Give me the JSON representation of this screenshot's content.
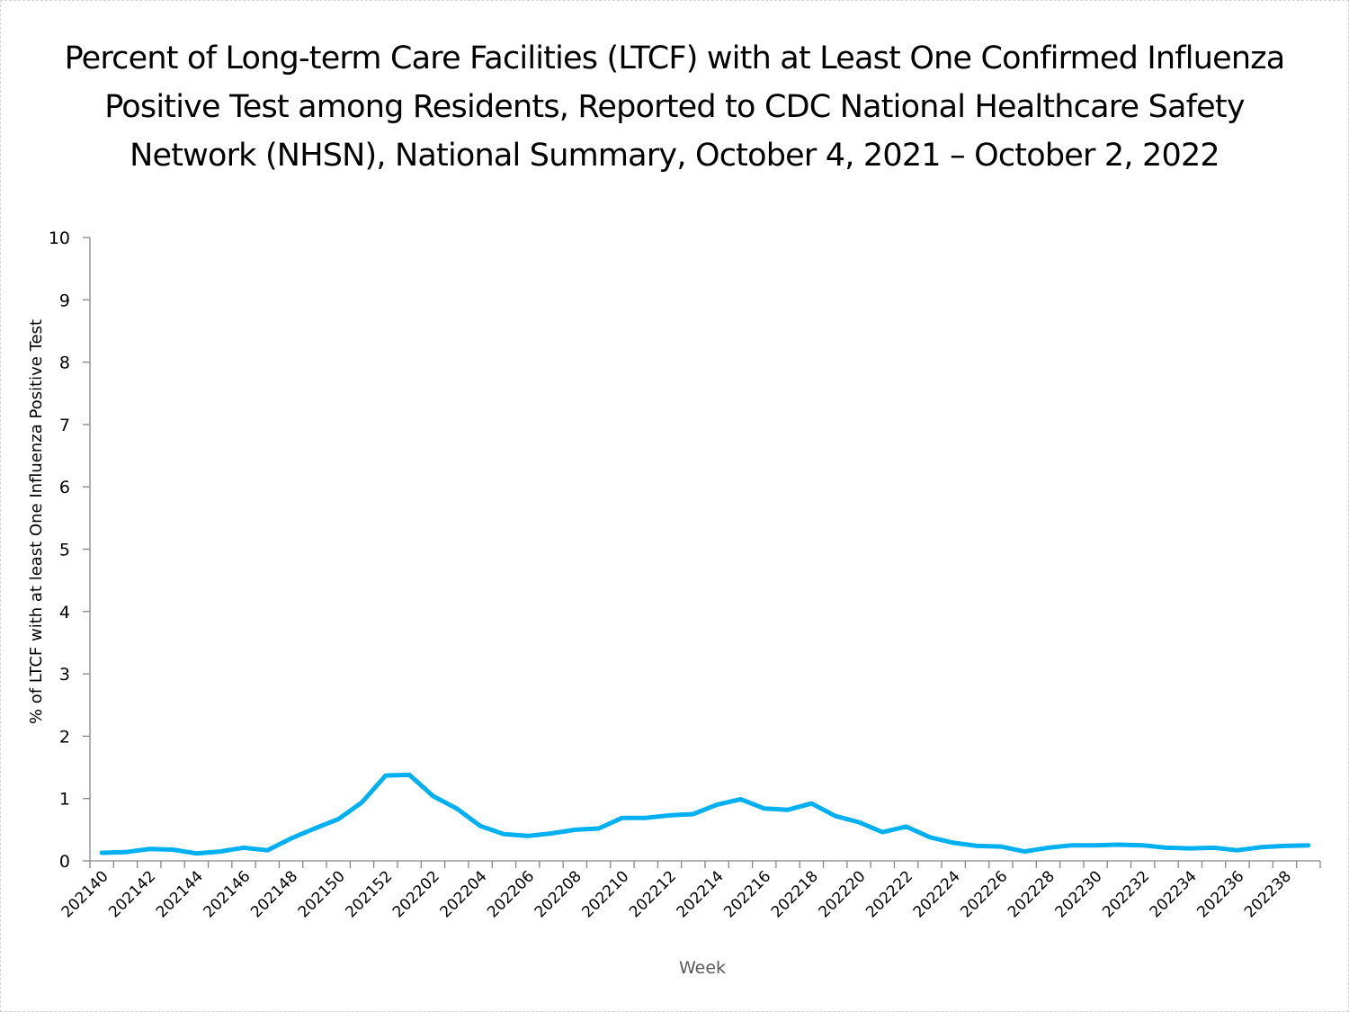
{
  "title_lines": [
    "Percent of Long-term Care Facilities (LTCF) with at Least One Confirmed Influenza",
    "Positive Test among Residents, Reported to CDC National Healthcare Safety",
    "Network (NHSN), National Summary, October 4, 2021 – October 2, 2022"
  ],
  "chart_data": {
    "type": "line",
    "title": "Percent of Long-term Care Facilities (LTCF) with at Least One Confirmed Influenza Positive Test among Residents, Reported to CDC National Healthcare Safety Network (NHSN), National Summary, October 4, 2021 – October 2, 2022",
    "xlabel": "Week",
    "ylabel": "% of LTCF with at least One Influenza Positive Test",
    "ylim": [
      0,
      10
    ],
    "yticks": [
      0,
      1,
      2,
      3,
      4,
      5,
      6,
      7,
      8,
      9,
      10
    ],
    "grid": false,
    "legend": "none",
    "line_color": "#00B0F0",
    "x": [
      "202140",
      "202141",
      "202142",
      "202143",
      "202144",
      "202145",
      "202146",
      "202147",
      "202148",
      "202149",
      "202150",
      "202151",
      "202152",
      "202201",
      "202202",
      "202203",
      "202204",
      "202205",
      "202206",
      "202207",
      "202208",
      "202209",
      "202210",
      "202211",
      "202212",
      "202213",
      "202214",
      "202215",
      "202216",
      "202217",
      "202218",
      "202219",
      "202220",
      "202221",
      "202222",
      "202223",
      "202224",
      "202225",
      "202226",
      "202227",
      "202228",
      "202229",
      "202230",
      "202231",
      "202232",
      "202233",
      "202234",
      "202235",
      "202236",
      "202237",
      "202238",
      "202239"
    ],
    "xtick_labels": [
      "202140",
      "202142",
      "202144",
      "202146",
      "202148",
      "202150",
      "202152",
      "202202",
      "202204",
      "202206",
      "202208",
      "202210",
      "202212",
      "202214",
      "202216",
      "202218",
      "202220",
      "202222",
      "202224",
      "202226",
      "202228",
      "202230",
      "202232",
      "202234",
      "202236",
      "202238"
    ],
    "series": [
      {
        "name": "% of LTCF with at least One Influenza Positive Test",
        "values": [
          0.13,
          0.14,
          0.19,
          0.18,
          0.12,
          0.15,
          0.21,
          0.17,
          0.36,
          0.52,
          0.67,
          0.94,
          1.37,
          1.38,
          1.04,
          0.84,
          0.56,
          0.43,
          0.4,
          0.44,
          0.5,
          0.52,
          0.69,
          0.69,
          0.73,
          0.75,
          0.9,
          0.99,
          0.84,
          0.82,
          0.92,
          0.72,
          0.62,
          0.46,
          0.55,
          0.38,
          0.29,
          0.24,
          0.23,
          0.15,
          0.21,
          0.25,
          0.25,
          0.26,
          0.25,
          0.21,
          0.2,
          0.21,
          0.17,
          0.22,
          0.24,
          0.25
        ]
      }
    ]
  }
}
